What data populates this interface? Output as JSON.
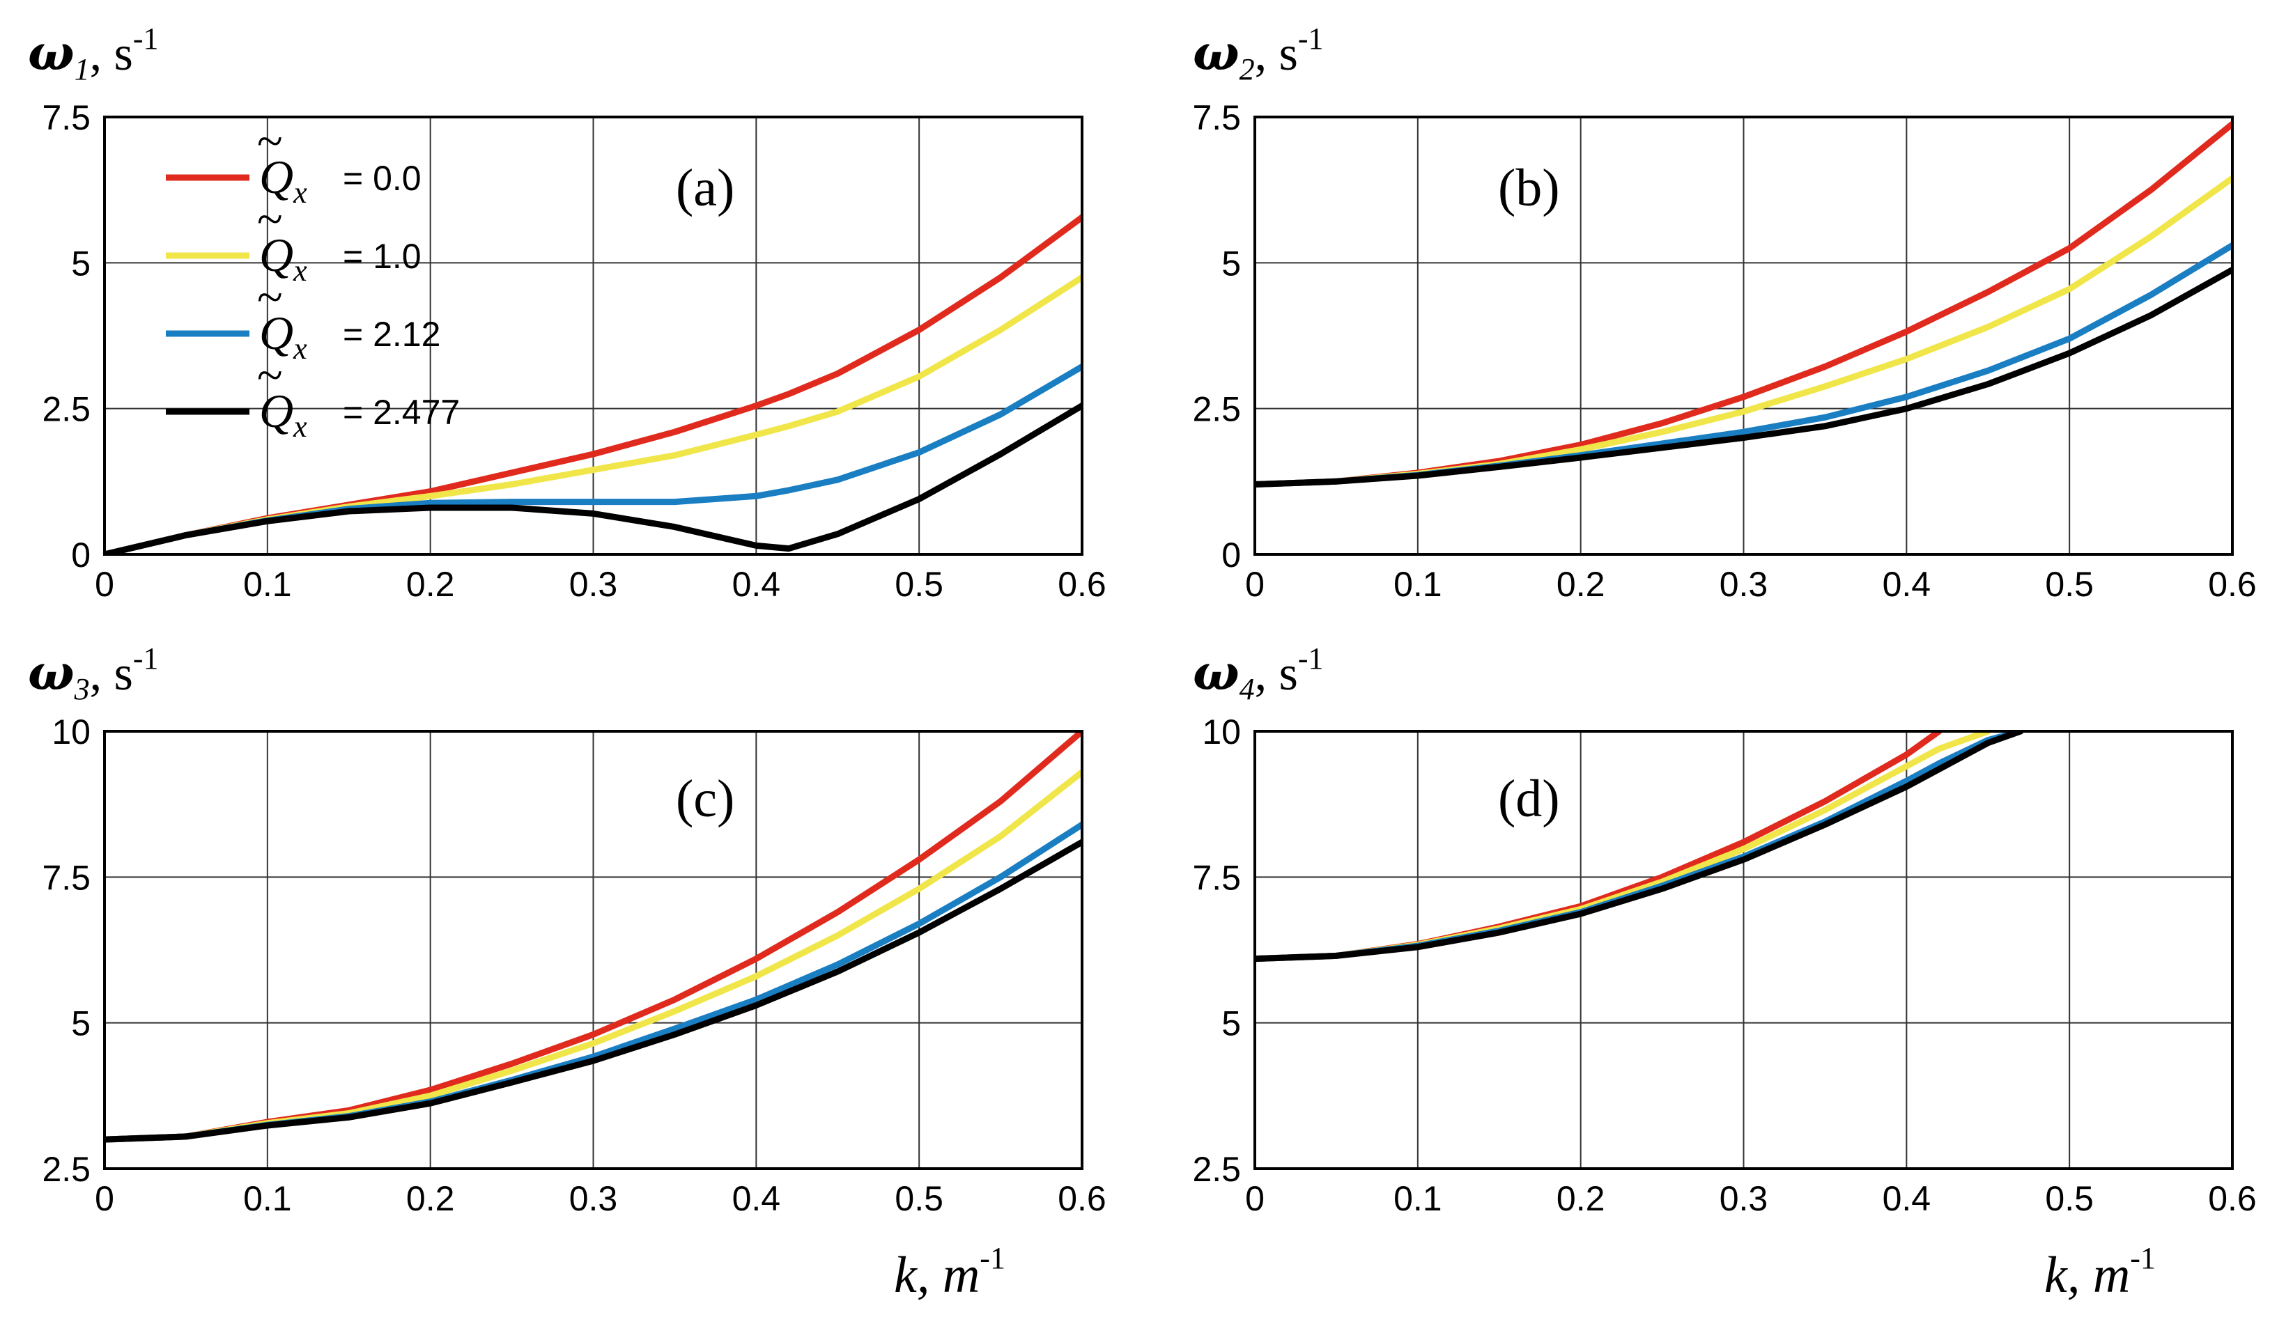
{
  "figure": {
    "xlabel": {
      "main": "k, m",
      "sup": "-1"
    },
    "ylabel_unit": "s",
    "ylabel_sup": "-1",
    "omega_symbol": "ω",
    "legend": {
      "symbol": "Q",
      "tilde": "~",
      "subscript": "x",
      "items": [
        {
          "value": "= 0.0",
          "color": "#e02a1e"
        },
        {
          "value": "= 1.0",
          "color": "#f0e64a"
        },
        {
          "value": "= 2.12",
          "color": "#1a7ec2"
        },
        {
          "value": "= 2.477",
          "color": "#000000"
        }
      ]
    }
  },
  "chart_data": [
    {
      "type": "line",
      "panel": "(a)",
      "ylabel_sub": "1",
      "xlim": [
        0,
        0.6
      ],
      "ylim": [
        0,
        7.5
      ],
      "xticks": [
        "0",
        "0.1",
        "0.2",
        "0.3",
        "0.4",
        "0.5",
        "0.6"
      ],
      "yticks": [
        "0",
        "2.5",
        "5",
        "7.5"
      ],
      "x": [
        0,
        0.05,
        0.1,
        0.15,
        0.2,
        0.25,
        0.3,
        0.35,
        0.4,
        0.42,
        0.45,
        0.5,
        0.55,
        0.6
      ],
      "series": [
        {
          "name": "Q̃x = 0.0",
          "color": "#e02a1e",
          "values": [
            0,
            0.33,
            0.62,
            0.85,
            1.08,
            1.4,
            1.72,
            2.1,
            2.55,
            2.75,
            3.1,
            3.85,
            4.75,
            5.78
          ]
        },
        {
          "name": "Q̃x = 1.0",
          "color": "#f0e64a",
          "values": [
            0,
            0.33,
            0.6,
            0.82,
            1.0,
            1.2,
            1.45,
            1.7,
            2.05,
            2.2,
            2.45,
            3.05,
            3.85,
            4.75
          ]
        },
        {
          "name": "Q̃x = 2.12",
          "color": "#1a7ec2",
          "values": [
            0,
            0.33,
            0.58,
            0.78,
            0.88,
            0.9,
            0.9,
            0.9,
            1.0,
            1.1,
            1.28,
            1.75,
            2.4,
            3.22
          ]
        },
        {
          "name": "Q̃x = 2.477",
          "color": "#000000",
          "values": [
            0,
            0.33,
            0.57,
            0.74,
            0.8,
            0.8,
            0.7,
            0.47,
            0.15,
            0.1,
            0.35,
            0.95,
            1.72,
            2.55
          ]
        }
      ]
    },
    {
      "type": "line",
      "panel": "(b)",
      "ylabel_sub": "2",
      "xlim": [
        0,
        0.6
      ],
      "ylim": [
        0,
        7.5
      ],
      "xticks": [
        "0",
        "0.1",
        "0.2",
        "0.3",
        "0.4",
        "0.5",
        "0.6"
      ],
      "yticks": [
        "0",
        "2.5",
        "5",
        "7.5"
      ],
      "x": [
        0,
        0.05,
        0.1,
        0.15,
        0.2,
        0.25,
        0.3,
        0.35,
        0.4,
        0.45,
        0.5,
        0.55,
        0.6
      ],
      "series": [
        {
          "name": "Q̃x = 0.0",
          "color": "#e02a1e",
          "values": [
            1.2,
            1.25,
            1.4,
            1.6,
            1.88,
            2.25,
            2.7,
            3.22,
            3.82,
            4.5,
            5.25,
            6.25,
            7.38
          ]
        },
        {
          "name": "Q̃x = 1.0",
          "color": "#f0e64a",
          "values": [
            1.2,
            1.25,
            1.38,
            1.55,
            1.8,
            2.1,
            2.45,
            2.88,
            3.35,
            3.9,
            4.55,
            5.45,
            6.45
          ]
        },
        {
          "name": "Q̃x = 2.12",
          "color": "#1a7ec2",
          "values": [
            1.2,
            1.25,
            1.36,
            1.52,
            1.7,
            1.9,
            2.1,
            2.35,
            2.7,
            3.15,
            3.7,
            4.45,
            5.3
          ]
        },
        {
          "name": "Q̃x = 2.477",
          "color": "#000000",
          "values": [
            1.2,
            1.25,
            1.35,
            1.5,
            1.66,
            1.83,
            2.0,
            2.2,
            2.5,
            2.92,
            3.45,
            4.1,
            4.88
          ]
        }
      ]
    },
    {
      "type": "line",
      "panel": "(c)",
      "ylabel_sub": "3",
      "xlim": [
        0,
        0.6
      ],
      "ylim": [
        2.5,
        10
      ],
      "xticks": [
        "0",
        "0.1",
        "0.2",
        "0.3",
        "0.4",
        "0.5",
        "0.6"
      ],
      "yticks": [
        "2.5",
        "5",
        "7.5",
        "10"
      ],
      "x": [
        0,
        0.05,
        0.1,
        0.15,
        0.2,
        0.25,
        0.3,
        0.35,
        0.4,
        0.45,
        0.5,
        0.55,
        0.6
      ],
      "series": [
        {
          "name": "Q̃x = 0.0",
          "color": "#e02a1e",
          "values": [
            3.0,
            3.05,
            3.3,
            3.5,
            3.85,
            4.3,
            4.8,
            5.4,
            6.1,
            6.9,
            7.8,
            8.8,
            10.0
          ]
        },
        {
          "name": "Q̃x = 1.0",
          "color": "#f0e64a",
          "values": [
            3.0,
            3.05,
            3.28,
            3.45,
            3.75,
            4.18,
            4.65,
            5.2,
            5.8,
            6.5,
            7.3,
            8.2,
            9.3
          ]
        },
        {
          "name": "Q̃x = 2.12",
          "color": "#1a7ec2",
          "values": [
            3.0,
            3.05,
            3.25,
            3.4,
            3.65,
            4.02,
            4.42,
            4.9,
            5.4,
            6.0,
            6.7,
            7.5,
            8.4
          ]
        },
        {
          "name": "Q̃x = 2.477",
          "color": "#000000",
          "values": [
            3.0,
            3.05,
            3.24,
            3.38,
            3.62,
            3.98,
            4.35,
            4.8,
            5.3,
            5.88,
            6.55,
            7.3,
            8.1
          ]
        }
      ]
    },
    {
      "type": "line",
      "panel": "(d)",
      "ylabel_sub": "4",
      "xlim": [
        0,
        0.6
      ],
      "ylim": [
        2.5,
        10
      ],
      "xticks": [
        "0",
        "0.1",
        "0.2",
        "0.3",
        "0.4",
        "0.5",
        "0.6"
      ],
      "yticks": [
        "2.5",
        "5",
        "7.5",
        "10"
      ],
      "x": [
        0,
        0.05,
        0.1,
        0.15,
        0.2,
        0.25,
        0.3,
        0.35,
        0.4,
        0.42,
        0.45,
        0.47
      ],
      "series": [
        {
          "name": "Q̃x = 0.0",
          "color": "#e02a1e",
          "values": [
            6.1,
            6.15,
            6.35,
            6.65,
            7.0,
            7.5,
            8.1,
            8.8,
            9.6,
            10.0,
            null,
            null
          ]
        },
        {
          "name": "Q̃x = 1.0",
          "color": "#f0e64a",
          "values": [
            6.1,
            6.15,
            6.34,
            6.62,
            6.95,
            7.42,
            7.98,
            8.65,
            9.4,
            9.7,
            10.0,
            null
          ]
        },
        {
          "name": "Q̃x = 2.12",
          "color": "#1a7ec2",
          "values": [
            6.1,
            6.15,
            6.32,
            6.58,
            6.9,
            7.35,
            7.85,
            8.45,
            9.15,
            9.45,
            9.85,
            10.0
          ]
        },
        {
          "name": "Q̃x = 2.477",
          "color": "#000000",
          "values": [
            6.1,
            6.15,
            6.3,
            6.55,
            6.87,
            7.3,
            7.8,
            8.4,
            9.05,
            9.35,
            9.8,
            10.0
          ]
        }
      ]
    }
  ]
}
